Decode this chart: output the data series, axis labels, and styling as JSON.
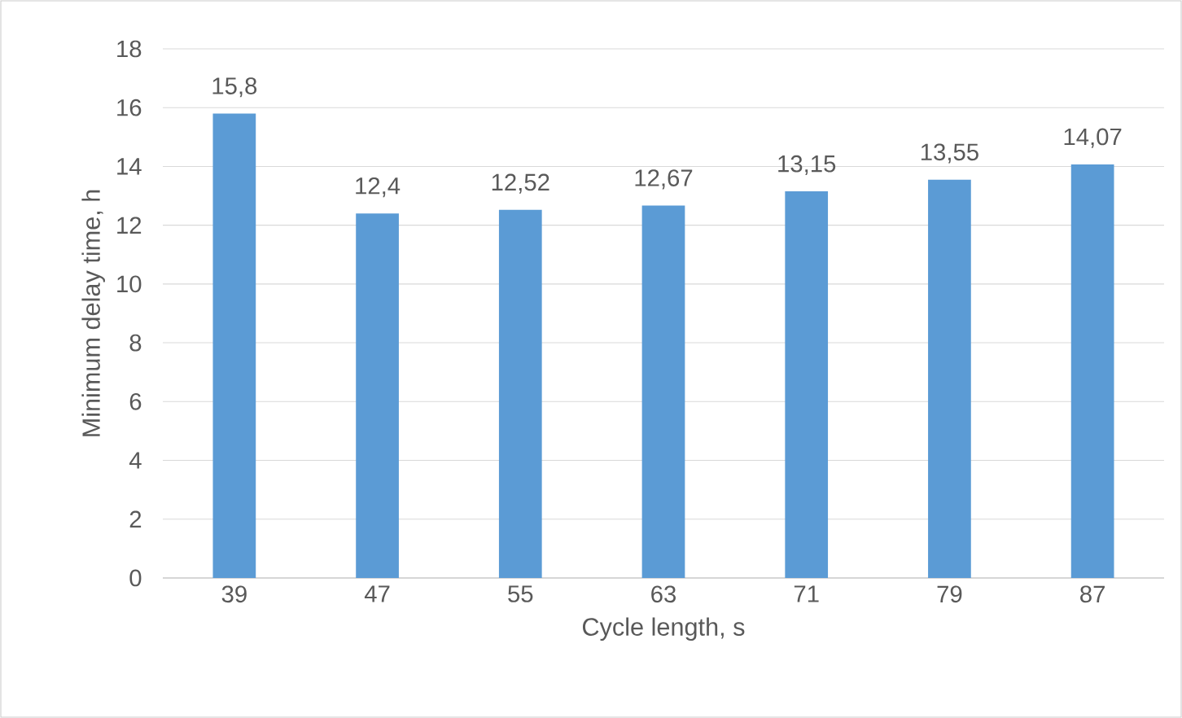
{
  "chart_data": {
    "type": "bar",
    "xlabel": "Cycle length, s",
    "ylabel": "Minimum delay time, h",
    "categories": [
      "39",
      "47",
      "55",
      "63",
      "71",
      "79",
      "87"
    ],
    "values": [
      15.8,
      12.4,
      12.52,
      12.67,
      13.15,
      13.55,
      14.07
    ],
    "value_labels": [
      "15,8",
      "12,4",
      "12,52",
      "12,67",
      "13,15",
      "13,55",
      "14,07"
    ],
    "color": "#5b9bd5",
    "ylim": [
      0,
      18
    ],
    "yticks": [
      0,
      2,
      4,
      6,
      8,
      10,
      12,
      14,
      16,
      18
    ],
    "grid": "y"
  }
}
